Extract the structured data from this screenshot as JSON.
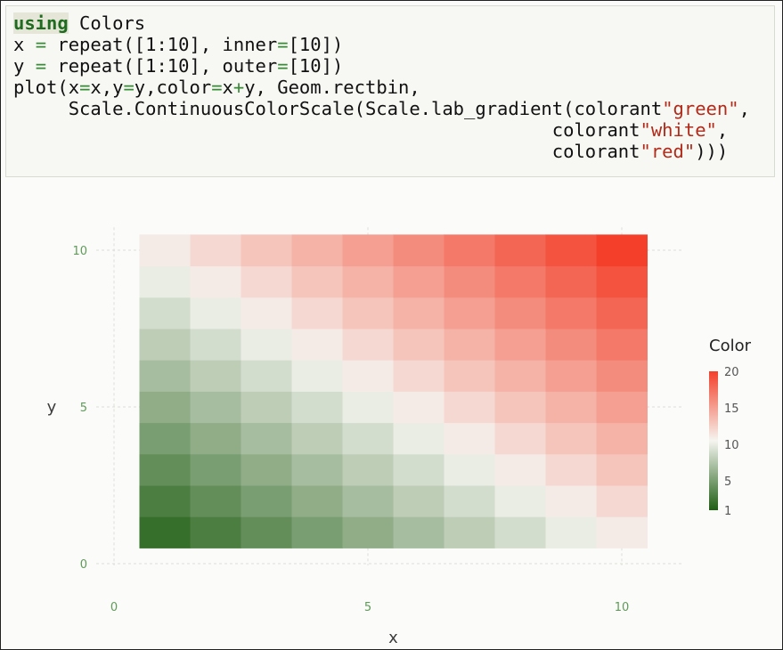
{
  "code": {
    "lines": [
      [
        {
          "t": "using",
          "c": "kw"
        },
        {
          "t": " Colors"
        }
      ],
      [
        {
          "t": "x "
        },
        {
          "t": "=",
          "c": "op"
        },
        {
          "t": " repeat([1:10], inner"
        },
        {
          "t": "=",
          "c": "op"
        },
        {
          "t": "[10])"
        }
      ],
      [
        {
          "t": "y "
        },
        {
          "t": "=",
          "c": "op"
        },
        {
          "t": " repeat([1:10], outer"
        },
        {
          "t": "=",
          "c": "op"
        },
        {
          "t": "[10])"
        }
      ],
      [
        {
          "t": "plot(x"
        },
        {
          "t": "=",
          "c": "op"
        },
        {
          "t": "x,y"
        },
        {
          "t": "=",
          "c": "op"
        },
        {
          "t": "y,color"
        },
        {
          "t": "=",
          "c": "op"
        },
        {
          "t": "x"
        },
        {
          "t": "+",
          "c": "op"
        },
        {
          "t": "y, Geom.rectbin,"
        }
      ],
      [
        {
          "t": "     Scale.ContinuousColorScale(Scale.lab_gradient(colorant"
        },
        {
          "t": "\"green\"",
          "c": "str"
        },
        {
          "t": ","
        }
      ],
      [
        {
          "t": "                                                 colorant"
        },
        {
          "t": "\"white\"",
          "c": "str"
        },
        {
          "t": ","
        }
      ],
      [
        {
          "t": "                                                 colorant"
        },
        {
          "t": "\"red\"",
          "c": "str"
        },
        {
          "t": ")))"
        }
      ]
    ]
  },
  "chart_data": {
    "type": "heatmap",
    "geom": "rectbin",
    "x": [
      1,
      2,
      3,
      4,
      5,
      6,
      7,
      8,
      9,
      10
    ],
    "y": [
      1,
      2,
      3,
      4,
      5,
      6,
      7,
      8,
      9,
      10
    ],
    "color_rule": "x+y",
    "xlabel": "x",
    "ylabel": "y",
    "xlim": [
      0,
      11
    ],
    "ylim": [
      0,
      10.5
    ],
    "xticks": [
      "0",
      "5",
      "10"
    ],
    "xtick_values": [
      0,
      5,
      10
    ],
    "yticks": [
      "0",
      "5",
      "10"
    ],
    "ytick_values": [
      0,
      5,
      10
    ],
    "grid": true,
    "legend": {
      "title": "Color",
      "placement": "right",
      "ticks": [
        "1",
        "5",
        "10",
        "15",
        "20"
      ],
      "tick_values": [
        1,
        5,
        10,
        15,
        20
      ],
      "range": [
        1,
        20
      ]
    },
    "gradient": [
      "#1f5e14",
      "#f5f5f0",
      "#f4402a"
    ]
  }
}
